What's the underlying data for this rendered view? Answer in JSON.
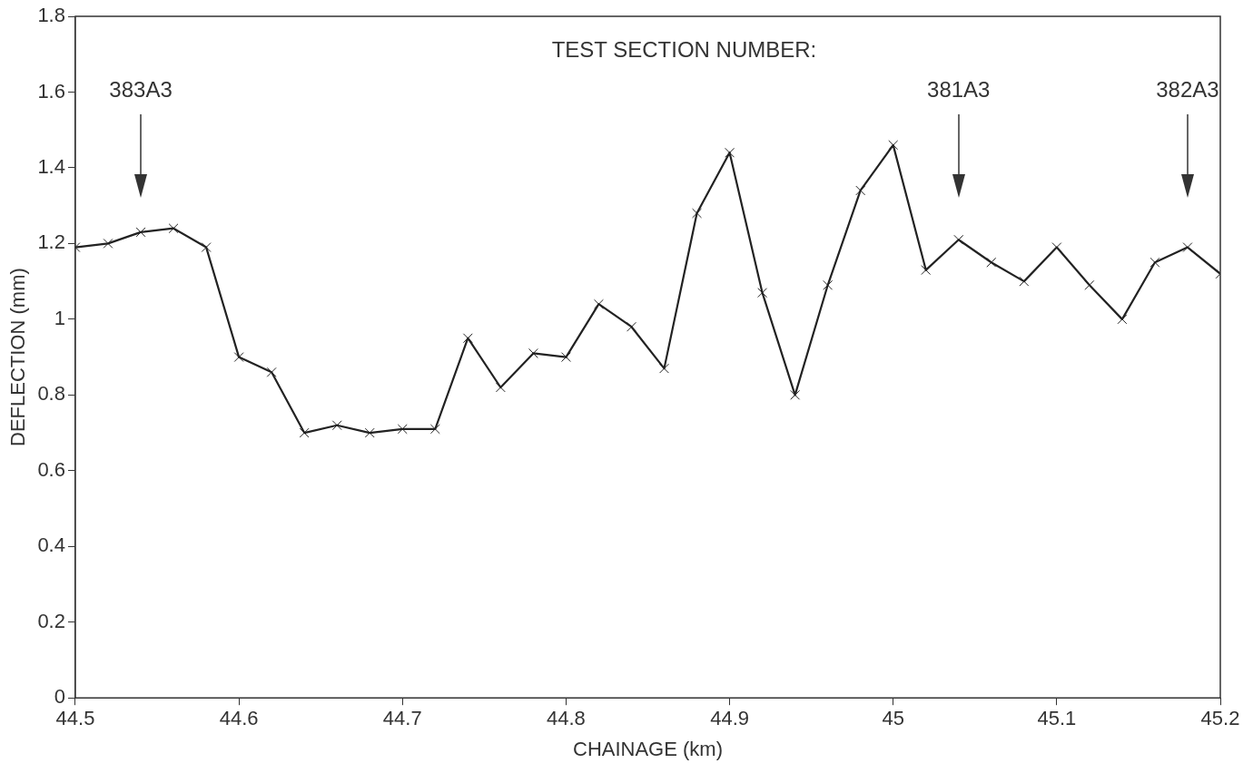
{
  "chart_data": {
    "type": "line",
    "xlabel": "CHAINAGE (km)",
    "ylabel": "DEFLECTION (mm)",
    "x": [
      44.5,
      44.52,
      44.54,
      44.56,
      44.58,
      44.6,
      44.62,
      44.64,
      44.66,
      44.68,
      44.7,
      44.72,
      44.74,
      44.76,
      44.78,
      44.8,
      44.82,
      44.84,
      44.86,
      44.88,
      44.9,
      44.92,
      44.94,
      44.96,
      44.98,
      45,
      45.02,
      45.04,
      45.06,
      45.08,
      45.1,
      45.12,
      45.14,
      45.16,
      45.18,
      45.2
    ],
    "values": [
      1.19,
      1.2,
      1.23,
      1.24,
      1.19,
      0.9,
      0.86,
      0.7,
      0.72,
      0.7,
      0.71,
      0.71,
      0.95,
      0.82,
      0.91,
      0.9,
      1.04,
      0.98,
      0.87,
      1.28,
      1.44,
      1.07,
      0.8,
      1.09,
      1.34,
      1.46,
      1.13,
      1.21,
      1.15,
      1.1,
      1.19,
      1.09,
      1,
      1.15,
      1.19,
      1.12
    ],
    "color": "#222222",
    "marker": "cross",
    "line_style": "solid",
    "grid": false,
    "legend": false,
    "xlim": [
      44.5,
      45.2
    ],
    "xticks": [
      44.5,
      44.6,
      44.7,
      44.8,
      44.9,
      45,
      45.1,
      45.2
    ],
    "ylim": [
      0,
      1.8
    ],
    "yticks": [
      0,
      0.2,
      0.4,
      0.6,
      0.8,
      1,
      1.2,
      1.4,
      1.6,
      1.8
    ],
    "annotations": [
      "TEST SECTION NUMBER:",
      {
        "text": "383A3",
        "x": 44.54
      },
      {
        "text": "381A3",
        "x": 45.04
      },
      {
        "text": "382A3",
        "x": 45.18
      }
    ]
  }
}
